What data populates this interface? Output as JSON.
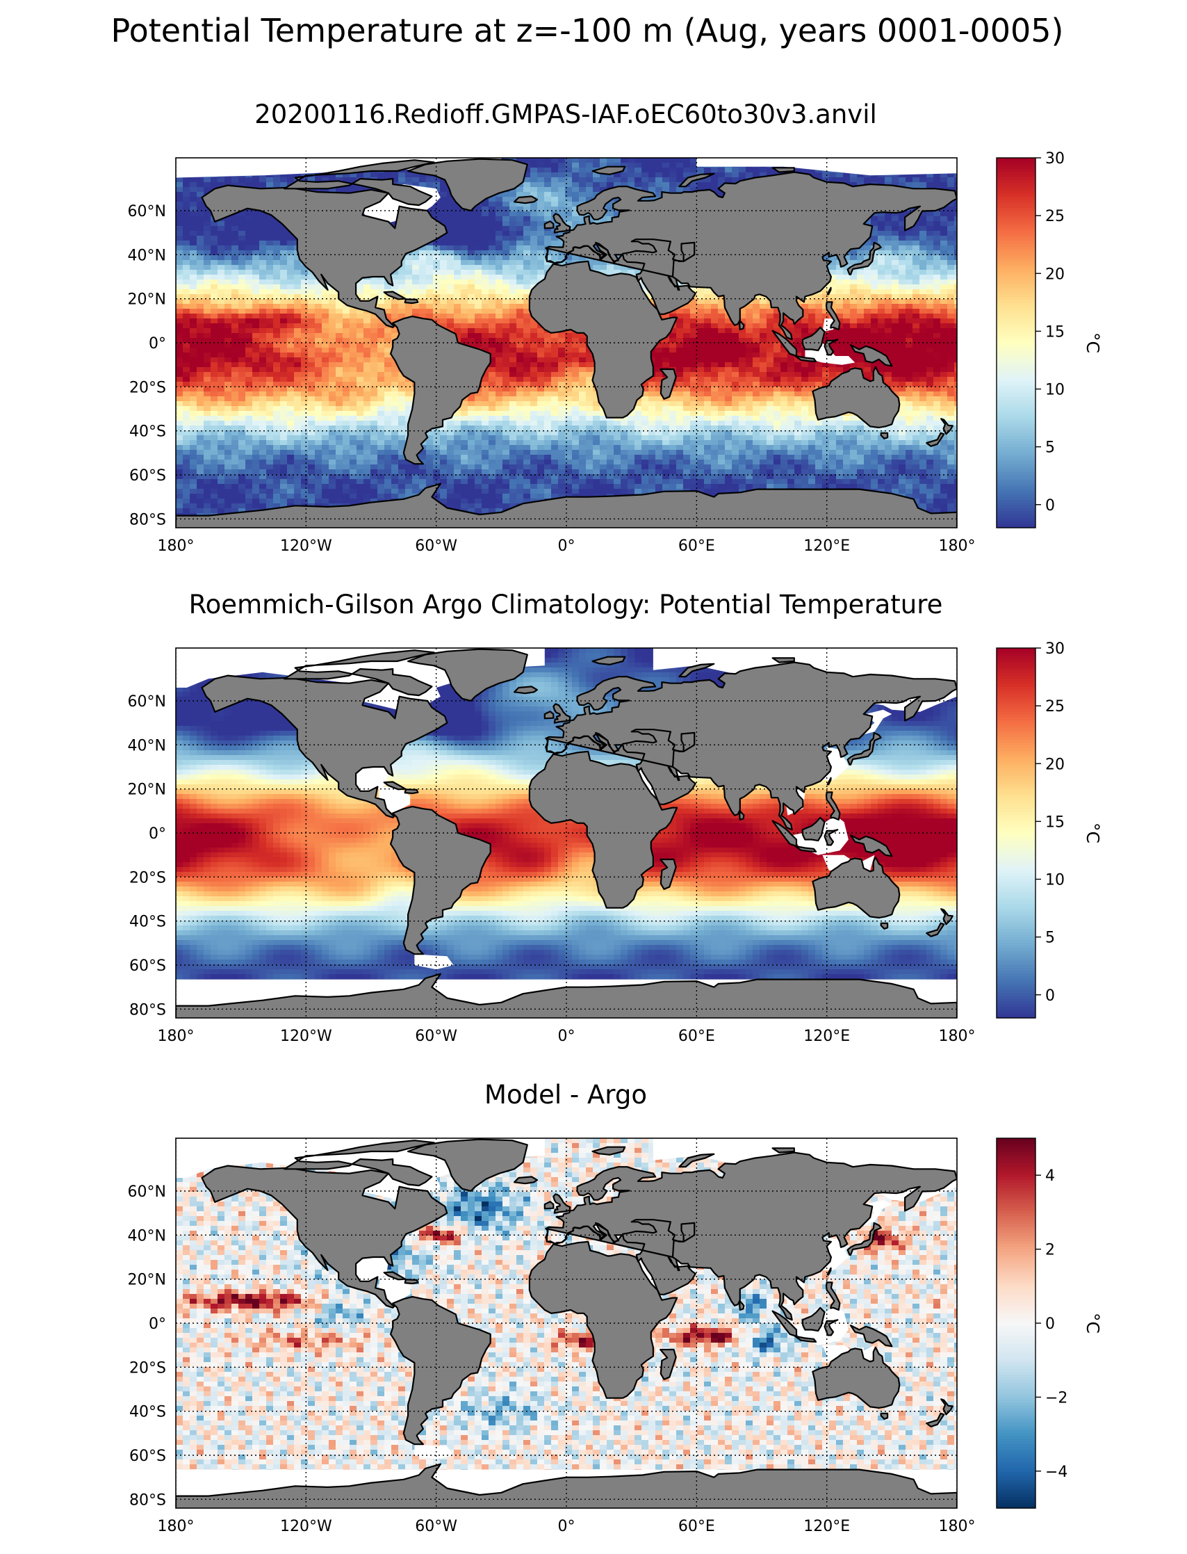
{
  "suptitle": "Potential Temperature at z=-100 m (Aug, years 0001-0005)",
  "colors": {
    "land": "#808080",
    "nodata": "#ffffff",
    "frame": "#000000",
    "rdylbu_r": [
      "#313695",
      "#4575b4",
      "#74add1",
      "#abd9e9",
      "#e0f3f8",
      "#ffffbf",
      "#fee090",
      "#fdae61",
      "#f46d43",
      "#d73027",
      "#a50026"
    ],
    "rdbu_r": [
      "#053061",
      "#2166ac",
      "#4393c3",
      "#92c5de",
      "#d1e5f0",
      "#f7f7f7",
      "#fddbc7",
      "#f4a582",
      "#d6604d",
      "#b2182b",
      "#67001f"
    ]
  },
  "grid": {
    "lon_ticks": [
      -180,
      -120,
      -60,
      0,
      60,
      120,
      180
    ],
    "lon_labels": [
      "180°",
      "120°W",
      "60°W",
      "0°",
      "60°E",
      "120°E",
      "180°"
    ],
    "lat_ticks": [
      60,
      40,
      20,
      0,
      -20,
      -40,
      -60,
      -80
    ],
    "lat_labels": [
      "60°N",
      "40°N",
      "20°N",
      "0°",
      "20°S",
      "40°S",
      "60°S",
      "80°S"
    ]
  },
  "panels": [
    {
      "title": "20200116.Redioff.GMPAS-IAF.oEC60to30v3.anvil",
      "field": "model",
      "cbar_label": "°C",
      "cbar_range": [
        -2,
        30
      ],
      "cbar_ticks": [
        0,
        5,
        10,
        15,
        20,
        25,
        30
      ],
      "cbar_tick_labels": [
        "0",
        "5",
        "10",
        "15",
        "20",
        "25",
        "30"
      ]
    },
    {
      "title": "Roemmich-Gilson Argo Climatology: Potential Temperature",
      "field": "obs",
      "cbar_label": "°C",
      "cbar_range": [
        -2,
        30
      ],
      "cbar_ticks": [
        0,
        5,
        10,
        15,
        20,
        25,
        30
      ],
      "cbar_tick_labels": [
        "0",
        "5",
        "10",
        "15",
        "20",
        "25",
        "30"
      ]
    },
    {
      "title": "Model - Argo",
      "field": "diff",
      "cbar_label": "°C",
      "cbar_range": [
        -5,
        5
      ],
      "cbar_ticks": [
        -4,
        -2,
        0,
        2,
        4
      ],
      "cbar_tick_labels": [
        "−4",
        "−2",
        "0",
        "2",
        "4"
      ]
    }
  ]
}
